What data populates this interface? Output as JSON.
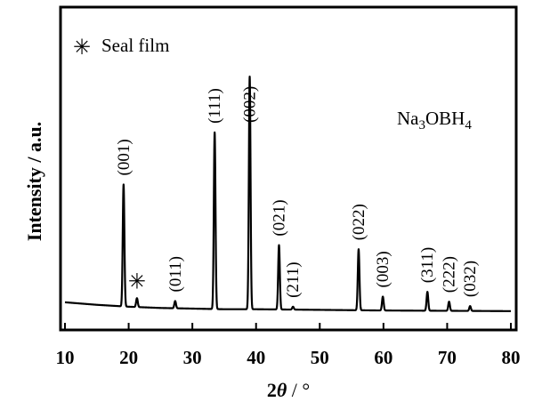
{
  "chart_data": {
    "type": "line",
    "xlabel": {
      "main": "2",
      "symbol": "θ",
      "unit": " / °"
    },
    "ylabel": "Intensity / a.u.",
    "xlim": [
      10,
      80
    ],
    "ylim": [
      0,
      1.0
    ],
    "x_ticks": [
      10,
      20,
      30,
      40,
      50,
      60,
      70,
      80
    ],
    "y_ticks_shown": false,
    "grid": false,
    "legend": {
      "symbol": "✳",
      "label": "Seal film",
      "position": "top-left"
    },
    "annotation": {
      "base": "Na",
      "sub1": "3",
      "mid": "OBH",
      "sub2": "4",
      "position": "top-right"
    },
    "series": [
      {
        "baseline": [
          [
            10,
            0.082
          ],
          [
            15,
            0.074
          ],
          [
            20,
            0.068
          ],
          [
            25,
            0.064
          ],
          [
            30,
            0.062
          ],
          [
            35,
            0.06
          ],
          [
            40,
            0.06
          ],
          [
            50,
            0.058
          ],
          [
            60,
            0.056
          ],
          [
            70,
            0.055
          ],
          [
            80,
            0.054
          ]
        ],
        "peaks": [
          {
            "x": 19.2,
            "y": 0.455,
            "label": "(001)"
          },
          {
            "x": 21.3,
            "y": 0.095,
            "label": "✳"
          },
          {
            "x": 27.3,
            "y": 0.086,
            "label": "(011)"
          },
          {
            "x": 33.5,
            "y": 0.62,
            "label": "(111)"
          },
          {
            "x": 39.0,
            "y": 0.797,
            "label": "(002)"
          },
          {
            "x": 43.6,
            "y": 0.263,
            "label": "(021)"
          },
          {
            "x": 45.8,
            "y": 0.068,
            "label": "(211)"
          },
          {
            "x": 56.1,
            "y": 0.25,
            "label": "(022)"
          },
          {
            "x": 59.9,
            "y": 0.1,
            "label": "(003)"
          },
          {
            "x": 66.9,
            "y": 0.115,
            "label": "(311)"
          },
          {
            "x": 70.3,
            "y": 0.084,
            "label": "(222)"
          },
          {
            "x": 73.6,
            "y": 0.07,
            "label": "(032)"
          }
        ]
      }
    ]
  }
}
